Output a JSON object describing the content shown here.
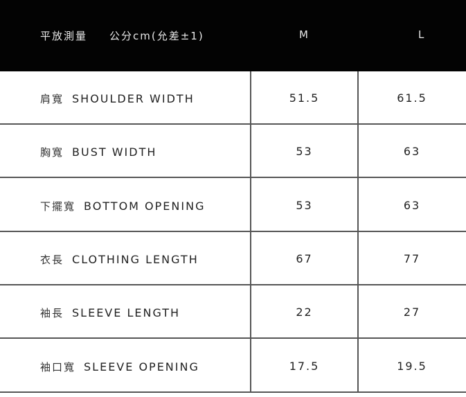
{
  "header": {
    "measure": "平放測量",
    "unit": "公分cm(允差±1)",
    "size_m": "M",
    "size_l": "L"
  },
  "rows": [
    {
      "zh": "肩寬",
      "en": "SHOULDER WIDTH",
      "m": "51.5",
      "l": "61.5"
    },
    {
      "zh": "胸寬",
      "en": "BUST WIDTH",
      "m": "53",
      "l": "63"
    },
    {
      "zh": "下擺寬",
      "en": "BOTTOM OPENING",
      "m": "53",
      "l": "63"
    },
    {
      "zh": "衣長",
      "en": "CLOTHING LENGTH",
      "m": "67",
      "l": "77"
    },
    {
      "zh": "袖長",
      "en": "SLEEVE LENGTH",
      "m": "22",
      "l": "27"
    },
    {
      "zh": "袖口寬",
      "en": "SLEEVE OPENING",
      "m": "17.5",
      "l": "19.5"
    }
  ]
}
